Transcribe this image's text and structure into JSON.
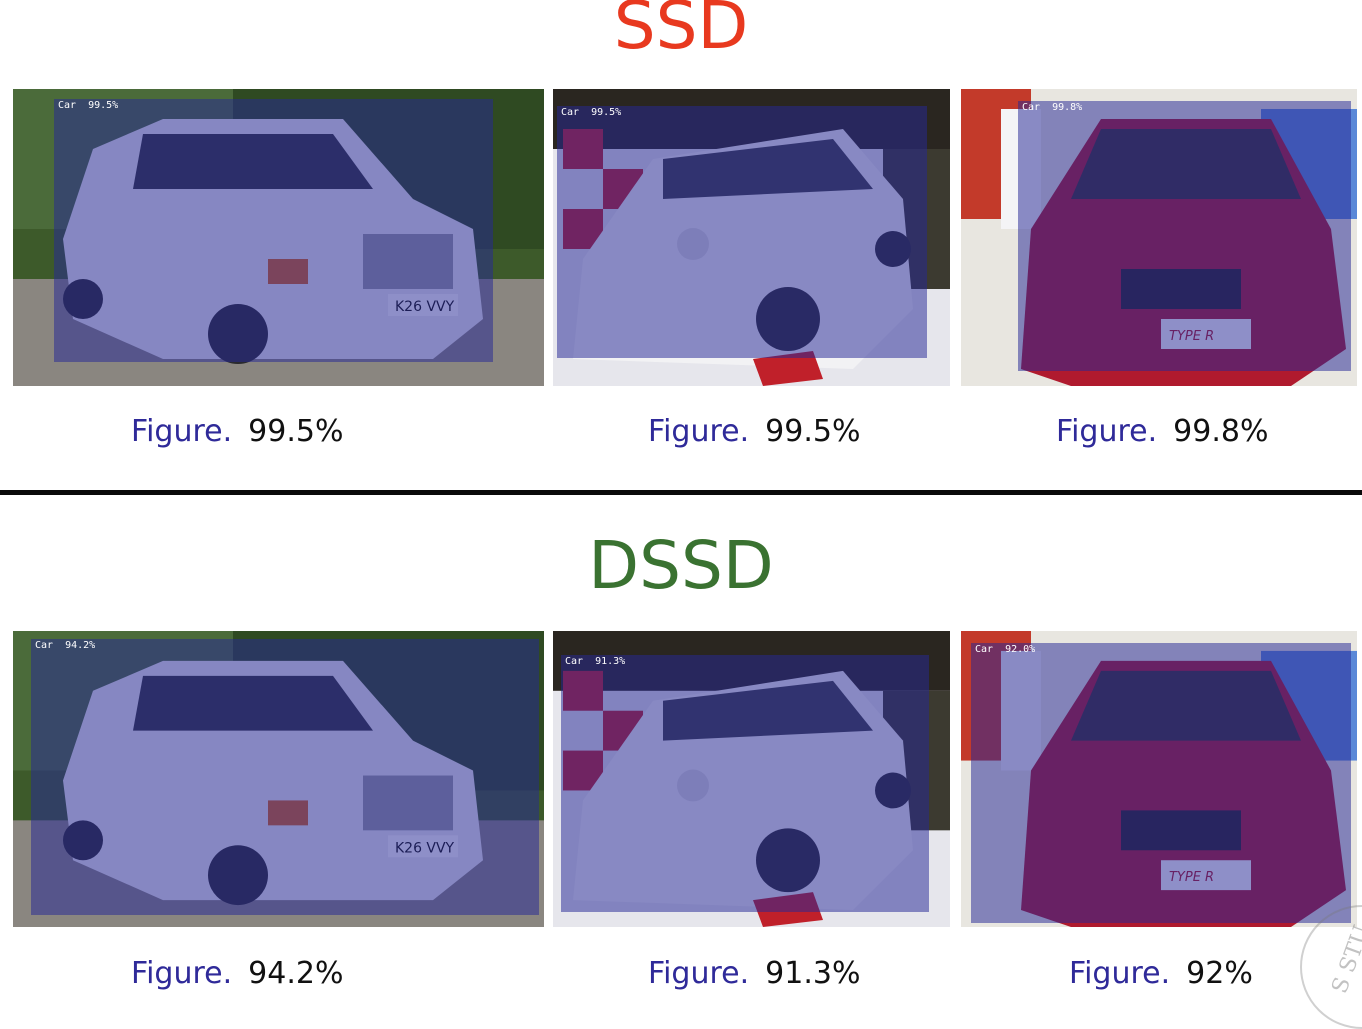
{
  "sections": {
    "ssd": {
      "title": "SSD",
      "detections": [
        {
          "label": "Car  99.5%",
          "caption_word": "Figure.",
          "caption_value": "99.5%"
        },
        {
          "label": "Car  99.5%",
          "caption_word": "Figure.",
          "caption_value": "99.5%"
        },
        {
          "label": "Car  99.8%",
          "caption_word": "Figure.",
          "caption_value": "99.8%"
        }
      ]
    },
    "dssd": {
      "title": "DSSD",
      "detections": [
        {
          "label": "Car  94.2%",
          "caption_word": "Figure.",
          "caption_value": "94.2%"
        },
        {
          "label": "Car  91.3%",
          "caption_word": "Figure.",
          "caption_value": "91.3%"
        },
        {
          "label": "Car  92.0%",
          "caption_word": "Figure.",
          "caption_value": "92%"
        }
      ]
    }
  },
  "images": {
    "car_1": {
      "description": "white sedan",
      "plate": "K26 VVY"
    },
    "car_2": {
      "description": "small white hatchback"
    },
    "car_3": {
      "description": "red hatchback front",
      "badge": "TYPE R"
    }
  },
  "seal_text": "S STU",
  "colors": {
    "ssd_title": "#e8391f",
    "dssd_title": "#3a7231",
    "caption_word": "#2f2a99",
    "box_fill": "rgba(38,40,150,0.52)"
  }
}
